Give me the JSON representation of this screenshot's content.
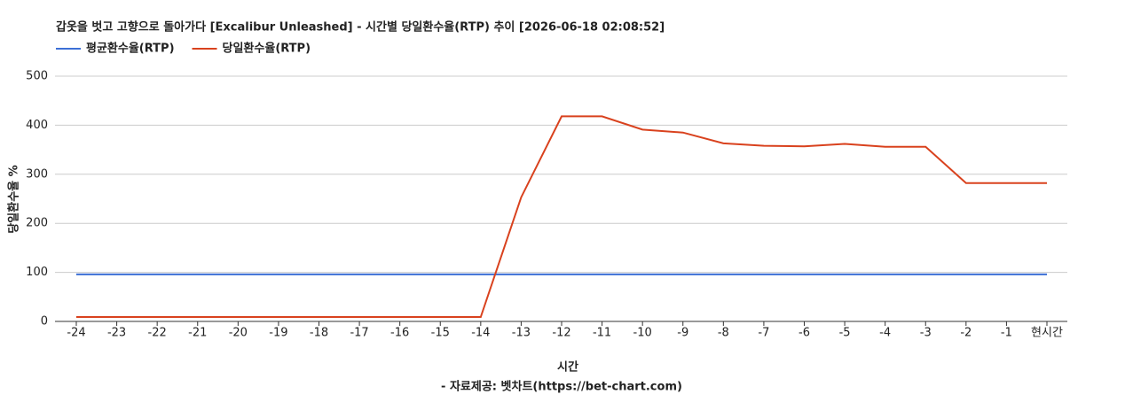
{
  "chart_data": {
    "type": "line",
    "title": "갑옷을 벗고 고향으로 돌아가다 [Excalibur Unleashed] - 시간별 당일환수율(RTP) 추이 [2026-06-18 02:08:52]",
    "x_label": "시간",
    "y_label": "당일환수율 %",
    "source": "- 자료제공: 벳차트(https://bet-chart.com)",
    "categories": [
      "-24",
      "-23",
      "-22",
      "-21",
      "-20",
      "-19",
      "-18",
      "-17",
      "-16",
      "-15",
      "-14",
      "-13",
      "-12",
      "-11",
      "-10",
      "-9",
      "-8",
      "-7",
      "-6",
      "-5",
      "-4",
      "-3",
      "-2",
      "-1",
      "현시간"
    ],
    "series": [
      {
        "name": "평균환수율(RTP)",
        "color": "#3c6fd6",
        "values": [
          96,
          96,
          96,
          96,
          96,
          96,
          96,
          96,
          96,
          96,
          96,
          96,
          96,
          96,
          96,
          96,
          96,
          96,
          96,
          96,
          96,
          96,
          96,
          96,
          96
        ]
      },
      {
        "name": "당일환수율(RTP)",
        "color": "#d9421e",
        "values": [
          9,
          9,
          9,
          9,
          9,
          9,
          9,
          9,
          9,
          9,
          9,
          253,
          418,
          418,
          391,
          385,
          363,
          358,
          357,
          362,
          356,
          356,
          282,
          282,
          282
        ]
      }
    ],
    "ylim": [
      0,
      500
    ],
    "yticks": [
      0,
      100,
      200,
      300,
      400,
      500
    ],
    "grid": true,
    "legend": "top"
  }
}
